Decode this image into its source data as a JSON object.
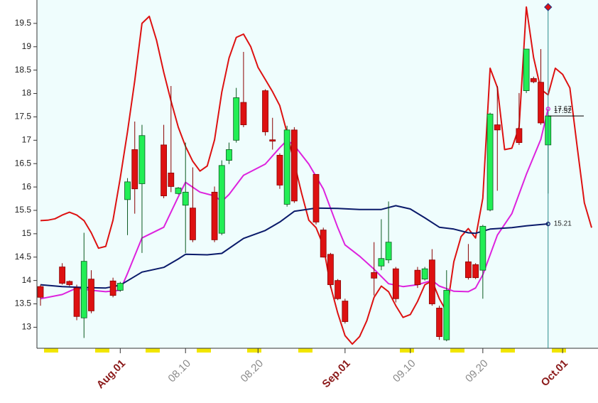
{
  "chart_data": {
    "type": "candlestick",
    "up_color": "#22ee55",
    "down_color": "#dd1111",
    "x": [
      "07.21",
      "07.24",
      "07.25",
      "07.26",
      "07.27",
      "07.28",
      "07.31",
      "08.01",
      "08.02",
      "08.03",
      "08.04",
      "08.07",
      "08.08",
      "08.09",
      "08.10",
      "08.11",
      "08.14",
      "08.15",
      "08.16",
      "08.17",
      "08.18",
      "08.21",
      "08.22",
      "08.23",
      "08.24",
      "08.25",
      "08.28",
      "08.29",
      "08.30",
      "08.31",
      "09.01",
      "09.05",
      "09.06",
      "09.07",
      "09.08",
      "09.11",
      "09.12",
      "09.13",
      "09.14",
      "09.15",
      "09.18",
      "09.19",
      "09.20",
      "09.21",
      "09.22",
      "09.25",
      "09.26",
      "09.27",
      "09.28",
      "09.29"
    ],
    "open": [
      13.87,
      14.29,
      13.98,
      13.84,
      13.2,
      14.03,
      13.99,
      13.79,
      15.73,
      16.8,
      16.07,
      16.9,
      16.3,
      15.86,
      15.61,
      15.55,
      15.89,
      15.01,
      16.57,
      17.0,
      17.81,
      18.06,
      17.01,
      16.68,
      15.63,
      17.22,
      16.27,
      15.08,
      14.56,
      14.0,
      13.56,
      14.17,
      14.31,
      14.44,
      14.25,
      14.22,
      14.03,
      14.44,
      13.41,
      12.73,
      14.4,
      14.34,
      14.22,
      15.51,
      17.33,
      17.25,
      18.06,
      18.32,
      18.24,
      16.9
    ],
    "high": [
      13.91,
      14.37,
      14.0,
      13.91,
      15.02,
      14.22,
      14.06,
      13.97,
      16.19,
      17.4,
      17.33,
      17.33,
      18.16,
      16.0,
      16.95,
      16.42,
      16.01,
      16.57,
      16.95,
      18.12,
      18.89,
      18.09,
      17.48,
      16.72,
      17.31,
      17.28,
      16.27,
      15.13,
      14.59,
      14.03,
      13.61,
      14.82,
      15.31,
      15.69,
      14.29,
      14.29,
      14.29,
      14.67,
      13.46,
      14.22,
      14.78,
      14.37,
      15.19,
      17.59,
      18.16,
      18.01,
      18.95,
      18.36,
      18.95,
      17.63
    ],
    "low": [
      13.46,
      13.91,
      13.88,
      13.15,
      12.77,
      13.3,
      13.64,
      13.76,
      14.97,
      15.43,
      14.59,
      15.76,
      15.89,
      15.84,
      14.59,
      14.82,
      14.82,
      14.97,
      16.49,
      16.95,
      17.28,
      17.1,
      16.8,
      15.96,
      15.58,
      15.66,
      15.2,
      14.49,
      13.84,
      13.58,
      13.08,
      13.68,
      14.22,
      14.37,
      13.53,
      13.84,
      14.0,
      13.46,
      12.73,
      12.7,
      14.02,
      14.03,
      13.61,
      15.48,
      15.92,
      16.9,
      18.01,
      18.22,
      17.33,
      15.86
    ],
    "close": [
      13.64,
      13.94,
      13.91,
      13.23,
      14.41,
      13.35,
      13.68,
      13.94,
      16.11,
      15.96,
      17.1,
      15.81,
      16.01,
      15.98,
      15.89,
      14.87,
      14.87,
      16.46,
      16.8,
      17.91,
      17.33,
      17.18,
      16.98,
      16.04,
      17.22,
      15.7,
      15.25,
      14.5,
      13.91,
      13.61,
      13.12,
      14.05,
      14.47,
      14.82,
      13.61,
      13.91,
      14.25,
      13.5,
      12.8,
      13.79,
      14.06,
      14.06,
      15.16,
      17.56,
      17.22,
      16.95,
      18.95,
      18.25,
      17.37,
      17.52
    ],
    "lines": [
      {
        "color": "#dd1111",
        "x": [
          "07.21",
          "07.22",
          "07.23",
          "07.24",
          "07.25",
          "07.26",
          "07.27",
          "07.28",
          "07.29",
          "07.30",
          "07.31",
          "08.01",
          "08.02",
          "08.03",
          "08.04",
          "08.05",
          "08.06",
          "08.07",
          "08.08",
          "08.09",
          "08.10",
          "08.11",
          "08.12",
          "08.13",
          "08.14",
          "08.15",
          "08.16",
          "08.17",
          "08.18",
          "08.19",
          "08.20",
          "08.21",
          "08.22",
          "08.23",
          "08.24",
          "08.25",
          "08.26",
          "08.27",
          "08.28",
          "08.29",
          "08.30",
          "08.31",
          "09.01",
          "09.02",
          "09.03",
          "09.04",
          "09.05",
          "09.06",
          "09.07",
          "09.08",
          "09.09",
          "09.10",
          "09.11",
          "09.12",
          "09.13",
          "09.14",
          "09.15",
          "09.16",
          "09.17",
          "09.18",
          "09.19",
          "09.20",
          "09.21",
          "09.22",
          "09.23",
          "09.24",
          "09.25",
          "09.26",
          "09.27",
          "09.28",
          "09.29",
          "09.30",
          "10.01",
          "10.02",
          "10.03",
          "10.04",
          "10.05"
        ],
        "values": [
          15.28,
          15.29,
          15.32,
          15.4,
          15.46,
          15.4,
          15.28,
          15.02,
          14.69,
          14.73,
          15.29,
          16.19,
          17.18,
          18.27,
          19.5,
          19.65,
          19.14,
          18.45,
          17.84,
          17.28,
          16.87,
          16.55,
          16.34,
          16.45,
          17.01,
          18.03,
          18.76,
          19.2,
          19.27,
          19.0,
          18.56,
          18.3,
          18.04,
          17.74,
          17.16,
          16.51,
          15.87,
          15.29,
          15.13,
          14.75,
          13.88,
          13.3,
          12.82,
          12.64,
          12.8,
          13.14,
          13.64,
          13.88,
          13.76,
          13.46,
          13.21,
          13.27,
          13.55,
          13.91,
          13.99,
          13.61,
          13.33,
          14.4,
          14.94,
          15.11,
          14.91,
          15.76,
          18.54,
          18.13,
          16.8,
          16.83,
          17.28,
          19.85,
          18.77,
          18.09,
          17.97,
          18.54,
          18.41,
          18.12,
          16.87,
          15.66,
          15.13
        ]
      },
      {
        "color": "#dd22dd",
        "x": [
          "07.21",
          "07.24",
          "07.26",
          "07.28",
          "07.30",
          "08.01",
          "08.02",
          "08.04",
          "08.07",
          "08.09",
          "08.10",
          "08.12",
          "08.14",
          "08.15",
          "08.16",
          "08.18",
          "08.21",
          "08.23",
          "08.24",
          "08.25",
          "08.27",
          "08.29",
          "08.31",
          "09.01",
          "09.03",
          "09.05",
          "09.07",
          "09.09",
          "09.11",
          "09.13",
          "09.14",
          "09.16",
          "09.18",
          "09.19",
          "09.20",
          "09.22",
          "09.24",
          "09.26",
          "09.28",
          "09.29"
        ],
        "values": [
          13.61,
          13.7,
          13.84,
          13.79,
          13.76,
          13.79,
          14.15,
          14.91,
          15.14,
          15.79,
          16.1,
          15.89,
          15.81,
          15.69,
          15.84,
          16.25,
          16.49,
          16.84,
          17.0,
          16.89,
          16.49,
          15.96,
          15.13,
          14.76,
          14.52,
          14.24,
          13.93,
          13.87,
          13.91,
          14.0,
          13.88,
          13.77,
          13.76,
          13.84,
          14.12,
          14.97,
          15.43,
          16.27,
          17.02,
          17.67
        ]
      },
      {
        "color": "#0a1a6a",
        "x": [
          "07.21",
          "07.24",
          "07.27",
          "07.30",
          "08.01",
          "08.04",
          "08.07",
          "08.09",
          "08.10",
          "08.13",
          "08.15",
          "08.18",
          "08.21",
          "08.23",
          "08.25",
          "08.28",
          "08.31",
          "09.03",
          "09.06",
          "09.08",
          "09.10",
          "09.12",
          "09.14",
          "09.16",
          "09.18",
          "09.19",
          "09.21",
          "09.24",
          "09.26",
          "09.29"
        ],
        "values": [
          13.91,
          13.87,
          13.85,
          13.84,
          13.9,
          14.18,
          14.28,
          14.46,
          14.56,
          14.55,
          14.58,
          14.9,
          15.07,
          15.25,
          15.48,
          15.55,
          15.54,
          15.52,
          15.52,
          15.6,
          15.53,
          15.34,
          15.14,
          15.1,
          15.02,
          15.01,
          15.1,
          15.13,
          15.17,
          15.21
        ]
      }
    ],
    "annotations": [
      {
        "value": 17.67,
        "color": "#dd22dd"
      },
      {
        "value": 17.52,
        "color": "#000000"
      },
      {
        "value": 15.21,
        "color": "#0a1a6a"
      }
    ],
    "xlim": [
      "07.21",
      "10.05"
    ],
    "xticks": [
      {
        "value": "08.01",
        "label": "Aug.01"
      },
      "08.10",
      "08.20",
      {
        "value": "09.01",
        "label": "Sep.01"
      },
      "09.10",
      "09.20",
      {
        "value": "10.01",
        "label": "Oct.01"
      }
    ],
    "ylim": [
      12.55,
      20
    ],
    "yticks": [
      13,
      13.5,
      14,
      14.5,
      15,
      15.5,
      16,
      16.5,
      17,
      17.5,
      18,
      18.5,
      19,
      19.5
    ]
  }
}
